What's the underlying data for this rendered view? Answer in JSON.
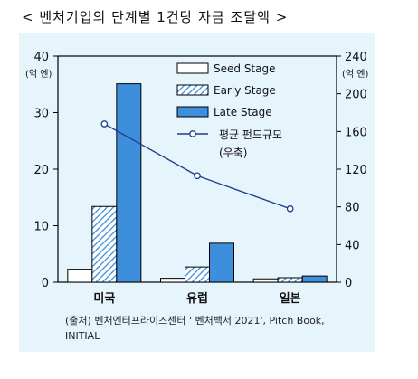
{
  "title": "< 벤처기업의 단계별 1건당 자금 조달액 >",
  "source_line1": "(출처) 벤처엔터프라이즈센터 ' 벤처백서 2021', Pitch Book,",
  "source_line2": "INITIAL",
  "colors": {
    "panel_bg": "#e6f4fb",
    "late": "#3d8fdb",
    "line": "#1f3e8c",
    "edge": "#000000"
  },
  "chart_data": {
    "type": "bar",
    "categories": [
      "미국",
      "유럽",
      "일본"
    ],
    "series": [
      {
        "name": "Seed Stage",
        "values": [
          2.3,
          0.7,
          0.6
        ],
        "style": "white"
      },
      {
        "name": "Early Stage",
        "values": [
          13.4,
          2.7,
          0.8
        ],
        "style": "hatched"
      },
      {
        "name": "Late Stage",
        "values": [
          35.1,
          6.9,
          1.1
        ],
        "style": "solid"
      }
    ],
    "line_series": {
      "name": "평균 펀드규모",
      "sub": "(우축)",
      "values": [
        168,
        113,
        78
      ],
      "axis": "right"
    },
    "left_axis": {
      "unit": "(억 엔)",
      "ylim": [
        0,
        40
      ],
      "ticks": [
        "0",
        "10",
        "20",
        "30",
        "40"
      ]
    },
    "right_axis": {
      "unit": "(억 엔)",
      "ylim": [
        0,
        240
      ],
      "ticks": [
        "0",
        "40",
        "80",
        "120",
        "160",
        "200",
        "240"
      ]
    },
    "legend_position": "top-center"
  }
}
